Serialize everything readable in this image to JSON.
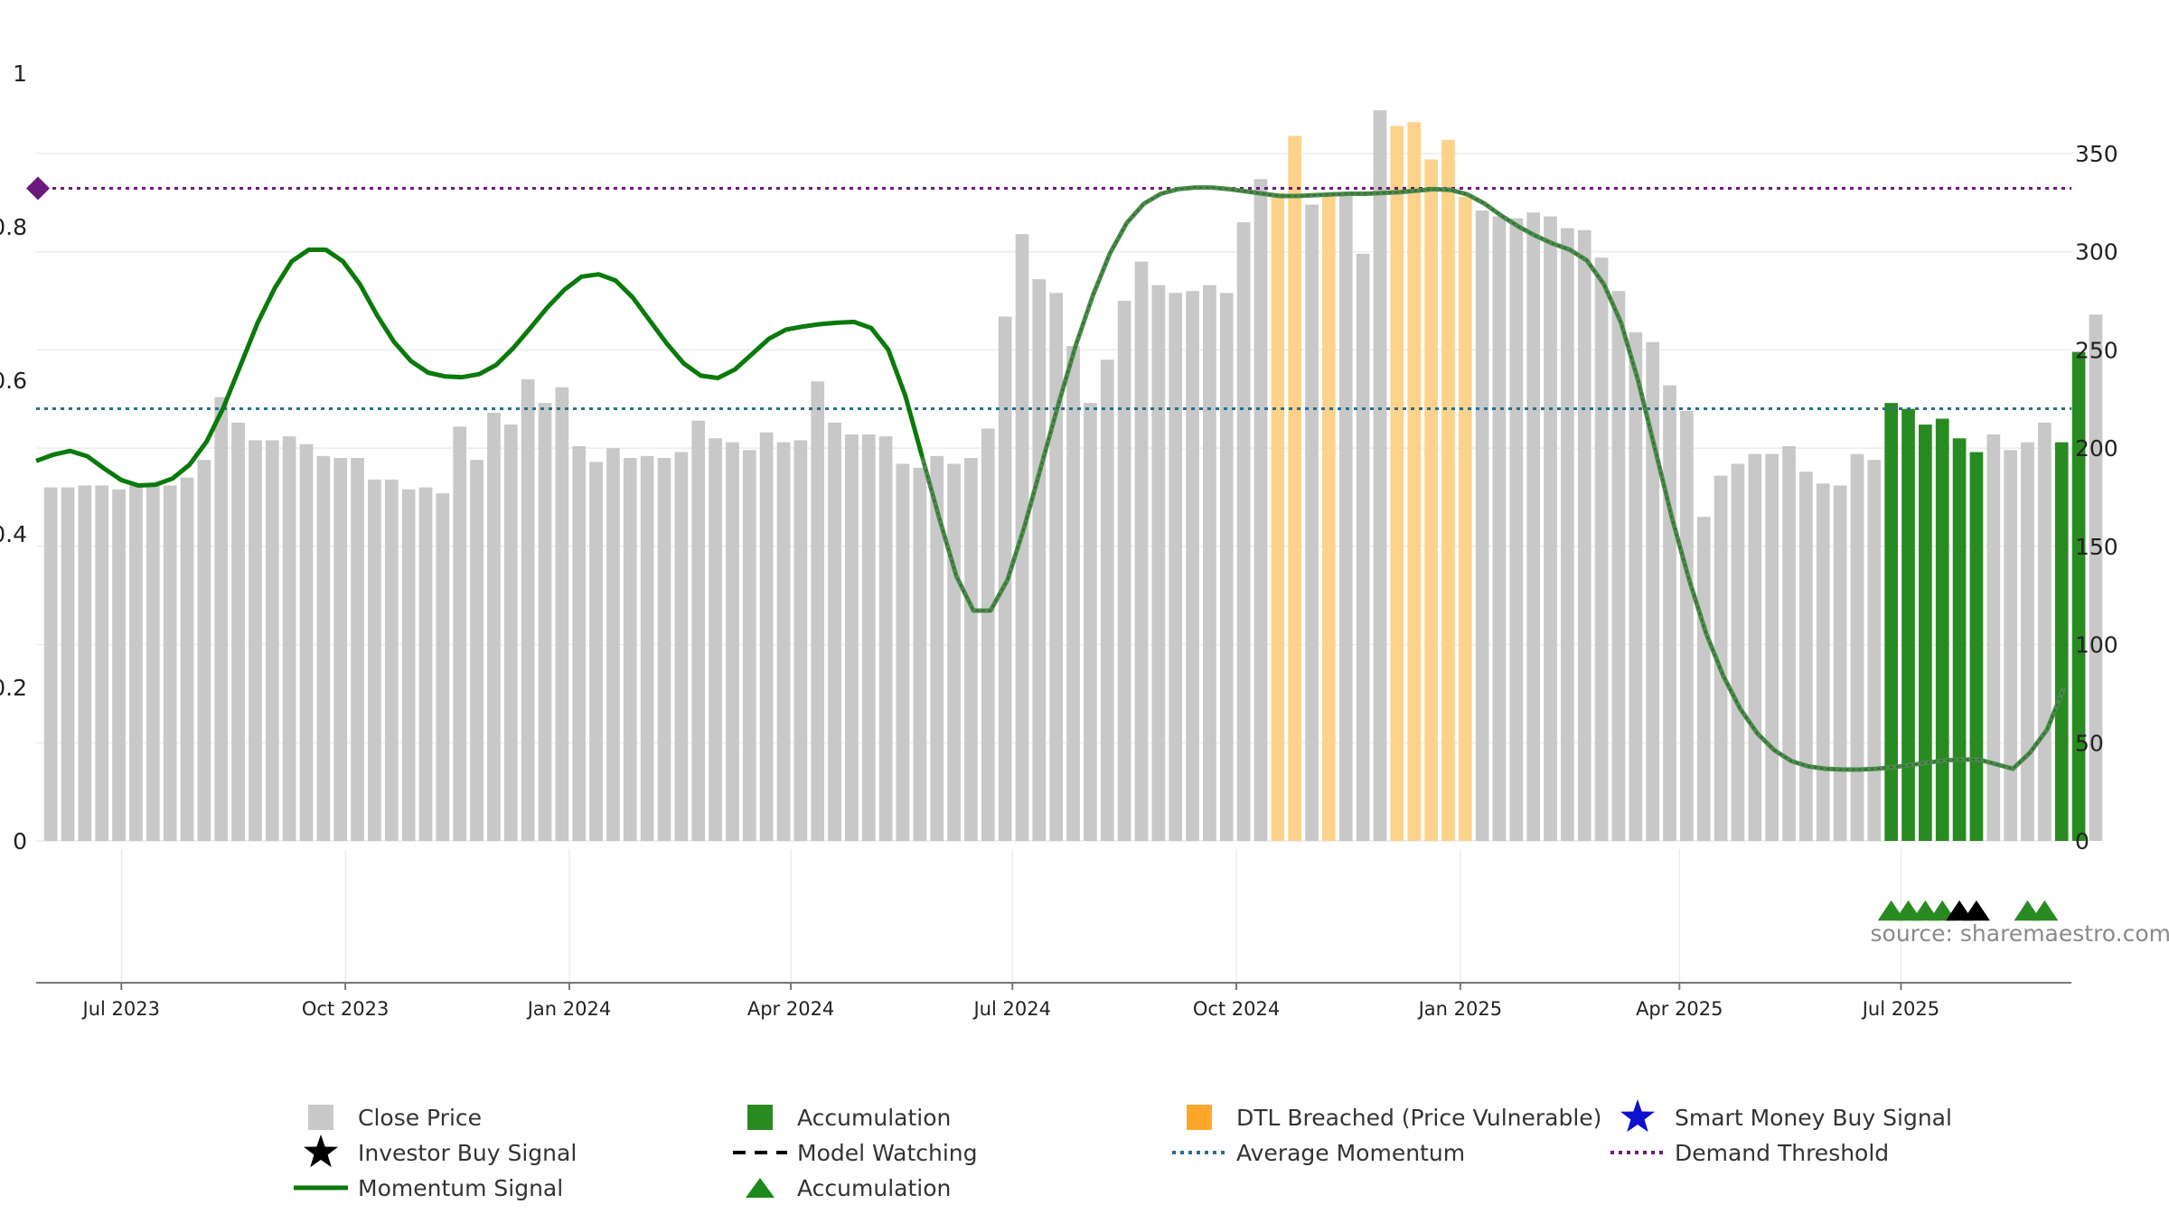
{
  "chart_data": {
    "type": "bar",
    "colors": {
      "close_price": "#c8c8c8",
      "accumulation": "#2a8a22",
      "dtl": "#fdd28a",
      "momentum": "#0a7a0a",
      "momentum_dashed": "#4a8a4a",
      "average_momentum": "#2a6f8f",
      "demand_threshold": "#6a1a7a",
      "investor_signal": "#000000",
      "smart_money_signal": "#1010d0"
    },
    "left_axis": {
      "range": [
        0,
        1
      ],
      "ticks": [
        0,
        0.2,
        0.4,
        0.6,
        0.8,
        1
      ],
      "tick_labels": [
        "0",
        "0.2",
        "0.4",
        "0.6",
        "0.8",
        "1"
      ]
    },
    "right_axis": {
      "range": [
        0,
        350
      ],
      "ticks": [
        0,
        50,
        100,
        150,
        200,
        250,
        300,
        350
      ],
      "tick_labels": [
        "0",
        "50",
        "100",
        "150",
        "200",
        "250",
        "300",
        "350"
      ]
    },
    "x_axis": {
      "start": "2023-05-27",
      "end": "2025-09-09",
      "ticks": [
        {
          "date": "2023-07-01",
          "label": "Jul 2023"
        },
        {
          "date": "2023-10-01",
          "label": "Oct 2023"
        },
        {
          "date": "2024-01-01",
          "label": "Jan 2024"
        },
        {
          "date": "2024-04-01",
          "label": "Apr 2024"
        },
        {
          "date": "2024-07-01",
          "label": "Jul 2024"
        },
        {
          "date": "2024-10-01",
          "label": "Oct 2024"
        },
        {
          "date": "2025-01-01",
          "label": "Jan 2025"
        },
        {
          "date": "2025-04-01",
          "label": "Apr 2025"
        },
        {
          "date": "2025-07-01",
          "label": "Jul 2025"
        }
      ]
    },
    "close_price": {
      "name": "Close Price",
      "start_date": "2023-06-02",
      "interval_days": 7,
      "values": [
        180,
        180,
        181,
        181,
        179,
        181,
        181,
        181,
        185,
        194,
        226,
        213,
        204,
        204,
        206,
        202,
        196,
        195,
        195,
        184,
        184,
        179,
        180,
        177,
        211,
        194,
        218,
        212,
        235,
        223,
        231,
        201,
        193,
        200,
        195,
        196,
        195,
        198,
        214,
        205,
        203,
        199,
        208,
        203,
        204,
        234,
        213,
        207,
        207,
        206,
        192,
        190,
        196,
        192,
        195,
        210,
        267,
        309,
        286,
        279,
        252,
        223,
        245,
        275,
        295,
        283,
        279,
        280,
        283,
        279,
        315,
        337,
        330,
        359,
        324,
        328,
        330,
        299,
        372,
        364,
        366,
        347,
        357,
        328,
        321,
        318,
        317,
        320,
        318,
        312,
        311,
        297,
        280,
        259,
        254,
        232,
        219,
        165,
        186,
        192,
        197,
        197,
        201,
        188,
        182,
        181,
        197,
        194,
        223,
        220,
        212,
        215,
        205,
        198,
        207,
        199,
        203,
        213,
        203,
        249,
        268
      ],
      "accumulation_indices": [
        108,
        109,
        110,
        111,
        112,
        113,
        118,
        119
      ],
      "dtl_indices": [
        72,
        73,
        75,
        79,
        80,
        81,
        82,
        83
      ]
    },
    "momentum": {
      "name": "Momentum Signal",
      "dashed_from_index": 52,
      "points": [
        {
          "date": "2023-05-27",
          "value": 0.495
        },
        {
          "date": "2023-06-03",
          "value": 0.503
        },
        {
          "date": "2023-06-10",
          "value": 0.508
        },
        {
          "date": "2023-06-17",
          "value": 0.501
        },
        {
          "date": "2023-06-24",
          "value": 0.485
        },
        {
          "date": "2023-07-01",
          "value": 0.47
        },
        {
          "date": "2023-07-08",
          "value": 0.463
        },
        {
          "date": "2023-07-15",
          "value": 0.464
        },
        {
          "date": "2023-07-22",
          "value": 0.472
        },
        {
          "date": "2023-07-29",
          "value": 0.49
        },
        {
          "date": "2023-08-05",
          "value": 0.52
        },
        {
          "date": "2023-08-12",
          "value": 0.565
        },
        {
          "date": "2023-08-19",
          "value": 0.62
        },
        {
          "date": "2023-08-26",
          "value": 0.675
        },
        {
          "date": "2023-09-02",
          "value": 0.72
        },
        {
          "date": "2023-09-09",
          "value": 0.755
        },
        {
          "date": "2023-09-16",
          "value": 0.77
        },
        {
          "date": "2023-09-23",
          "value": 0.77
        },
        {
          "date": "2023-09-30",
          "value": 0.755
        },
        {
          "date": "2023-10-07",
          "value": 0.725
        },
        {
          "date": "2023-10-14",
          "value": 0.685
        },
        {
          "date": "2023-10-21",
          "value": 0.65
        },
        {
          "date": "2023-10-28",
          "value": 0.625
        },
        {
          "date": "2023-11-04",
          "value": 0.61
        },
        {
          "date": "2023-11-11",
          "value": 0.605
        },
        {
          "date": "2023-11-18",
          "value": 0.604
        },
        {
          "date": "2023-11-25",
          "value": 0.608
        },
        {
          "date": "2023-12-02",
          "value": 0.62
        },
        {
          "date": "2023-12-09",
          "value": 0.642
        },
        {
          "date": "2023-12-16",
          "value": 0.668
        },
        {
          "date": "2023-12-23",
          "value": 0.695
        },
        {
          "date": "2023-12-30",
          "value": 0.718
        },
        {
          "date": "2024-01-06",
          "value": 0.735
        },
        {
          "date": "2024-01-13",
          "value": 0.738
        },
        {
          "date": "2024-01-20",
          "value": 0.73
        },
        {
          "date": "2024-01-27",
          "value": 0.708
        },
        {
          "date": "2024-02-03",
          "value": 0.678
        },
        {
          "date": "2024-02-10",
          "value": 0.648
        },
        {
          "date": "2024-02-17",
          "value": 0.622
        },
        {
          "date": "2024-02-24",
          "value": 0.606
        },
        {
          "date": "2024-03-02",
          "value": 0.603
        },
        {
          "date": "2024-03-09",
          "value": 0.614
        },
        {
          "date": "2024-03-16",
          "value": 0.634
        },
        {
          "date": "2024-03-23",
          "value": 0.654
        },
        {
          "date": "2024-03-30",
          "value": 0.666
        },
        {
          "date": "2024-04-06",
          "value": 0.67
        },
        {
          "date": "2024-04-13",
          "value": 0.673
        },
        {
          "date": "2024-04-20",
          "value": 0.675
        },
        {
          "date": "2024-04-27",
          "value": 0.676
        },
        {
          "date": "2024-05-04",
          "value": 0.668
        },
        {
          "date": "2024-05-11",
          "value": 0.64
        },
        {
          "date": "2024-05-18",
          "value": 0.58
        },
        {
          "date": "2024-05-25",
          "value": 0.5
        },
        {
          "date": "2024-06-01",
          "value": 0.42
        },
        {
          "date": "2024-06-08",
          "value": 0.345
        },
        {
          "date": "2024-06-15",
          "value": 0.3
        },
        {
          "date": "2024-06-22",
          "value": 0.3
        },
        {
          "date": "2024-06-29",
          "value": 0.34
        },
        {
          "date": "2024-07-06",
          "value": 0.41
        },
        {
          "date": "2024-07-13",
          "value": 0.49
        },
        {
          "date": "2024-07-20",
          "value": 0.57
        },
        {
          "date": "2024-07-27",
          "value": 0.645
        },
        {
          "date": "2024-08-03",
          "value": 0.71
        },
        {
          "date": "2024-08-10",
          "value": 0.765
        },
        {
          "date": "2024-08-17",
          "value": 0.805
        },
        {
          "date": "2024-08-24",
          "value": 0.83
        },
        {
          "date": "2024-08-31",
          "value": 0.843
        },
        {
          "date": "2024-09-07",
          "value": 0.849
        },
        {
          "date": "2024-09-14",
          "value": 0.851
        },
        {
          "date": "2024-09-21",
          "value": 0.851
        },
        {
          "date": "2024-09-28",
          "value": 0.849
        },
        {
          "date": "2024-10-05",
          "value": 0.846
        },
        {
          "date": "2024-10-12",
          "value": 0.843
        },
        {
          "date": "2024-10-19",
          "value": 0.84
        },
        {
          "date": "2024-10-26",
          "value": 0.84
        },
        {
          "date": "2024-11-02",
          "value": 0.841
        },
        {
          "date": "2024-11-09",
          "value": 0.842
        },
        {
          "date": "2024-11-16",
          "value": 0.843
        },
        {
          "date": "2024-11-23",
          "value": 0.843
        },
        {
          "date": "2024-11-30",
          "value": 0.844
        },
        {
          "date": "2024-12-07",
          "value": 0.845
        },
        {
          "date": "2024-12-14",
          "value": 0.847
        },
        {
          "date": "2024-12-21",
          "value": 0.849
        },
        {
          "date": "2024-12-28",
          "value": 0.848
        },
        {
          "date": "2025-01-04",
          "value": 0.842
        },
        {
          "date": "2025-01-11",
          "value": 0.83
        },
        {
          "date": "2025-01-18",
          "value": 0.814
        },
        {
          "date": "2025-01-25",
          "value": 0.8
        },
        {
          "date": "2025-02-01",
          "value": 0.788
        },
        {
          "date": "2025-02-08",
          "value": 0.778
        },
        {
          "date": "2025-02-15",
          "value": 0.77
        },
        {
          "date": "2025-02-22",
          "value": 0.756
        },
        {
          "date": "2025-03-01",
          "value": 0.725
        },
        {
          "date": "2025-03-08",
          "value": 0.675
        },
        {
          "date": "2025-03-15",
          "value": 0.6
        },
        {
          "date": "2025-03-22",
          "value": 0.51
        },
        {
          "date": "2025-03-29",
          "value": 0.42
        },
        {
          "date": "2025-04-05",
          "value": 0.34
        },
        {
          "date": "2025-04-12",
          "value": 0.27
        },
        {
          "date": "2025-04-19",
          "value": 0.215
        },
        {
          "date": "2025-04-26",
          "value": 0.172
        },
        {
          "date": "2025-05-03",
          "value": 0.14
        },
        {
          "date": "2025-05-10",
          "value": 0.118
        },
        {
          "date": "2025-05-17",
          "value": 0.104
        },
        {
          "date": "2025-05-24",
          "value": 0.097
        },
        {
          "date": "2025-05-31",
          "value": 0.094
        },
        {
          "date": "2025-06-07",
          "value": 0.093
        },
        {
          "date": "2025-06-14",
          "value": 0.093
        },
        {
          "date": "2025-06-21",
          "value": 0.094
        },
        {
          "date": "2025-06-28",
          "value": 0.096
        },
        {
          "date": "2025-07-05",
          "value": 0.099
        },
        {
          "date": "2025-07-12",
          "value": 0.102
        },
        {
          "date": "2025-07-19",
          "value": 0.105
        },
        {
          "date": "2025-07-26",
          "value": 0.106
        },
        {
          "date": "2025-08-02",
          "value": 0.106
        },
        {
          "date": "2025-08-09",
          "value": 0.1
        },
        {
          "date": "2025-08-16",
          "value": 0.094
        },
        {
          "date": "2025-08-23",
          "value": 0.115
        },
        {
          "date": "2025-08-30",
          "value": 0.145
        },
        {
          "date": "2025-09-06",
          "value": 0.2
        }
      ]
    },
    "average_momentum": {
      "name": "Average Momentum",
      "value": 0.563
    },
    "demand_threshold": {
      "name": "Demand Threshold",
      "value": 0.85
    },
    "accumulation_markers": [
      {
        "date": "2025-06-27"
      },
      {
        "date": "2025-07-04"
      },
      {
        "date": "2025-07-11"
      },
      {
        "date": "2025-07-18"
      },
      {
        "date": "2025-08-22"
      },
      {
        "date": "2025-08-29"
      }
    ],
    "investor_markers": [
      {
        "date": "2025-07-25"
      },
      {
        "date": "2025-08-01"
      }
    ],
    "legend": [
      {
        "label": "Close Price",
        "symbol": "square",
        "color": "#c8c8c8"
      },
      {
        "label": "Accumulation",
        "symbol": "square",
        "color": "#2a8a22"
      },
      {
        "label": "DTL Breached (Price Vulnerable)",
        "symbol": "square",
        "color": "#fda82a"
      },
      {
        "label": "Smart Money Buy Signal",
        "symbol": "star",
        "color": "#1010d0"
      },
      {
        "label": "Investor Buy Signal",
        "symbol": "star",
        "color": "#000000"
      },
      {
        "label": "Model Watching",
        "symbol": "dash",
        "color": "#000000"
      },
      {
        "label": "Average Momentum",
        "symbol": "dotted",
        "color": "#2a6f8f"
      },
      {
        "label": "Demand Threshold",
        "symbol": "dotted",
        "color": "#6a1a7a"
      },
      {
        "label": "Momentum Signal",
        "symbol": "line",
        "color": "#0a7a0a"
      },
      {
        "label": "Accumulation",
        "symbol": "triangle",
        "color": "#1a8a1a"
      }
    ],
    "source_text": "source: sharemaestro.com"
  }
}
